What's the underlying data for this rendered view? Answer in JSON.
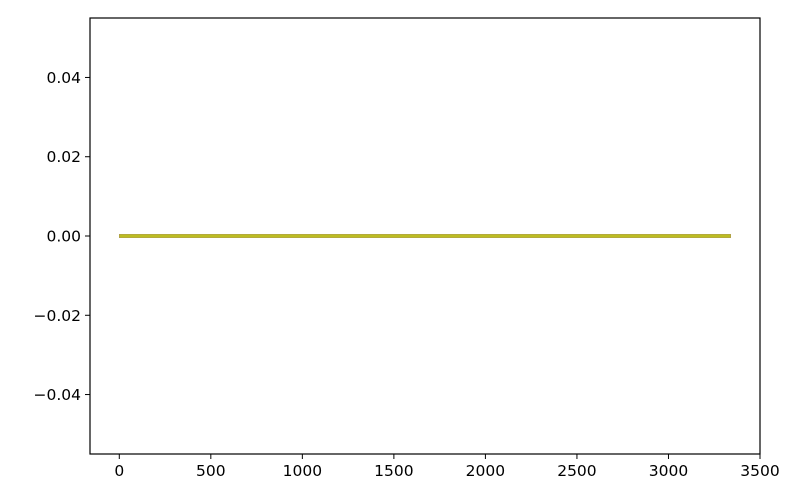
{
  "chart_data": {
    "type": "line",
    "title": "",
    "xlabel": "",
    "ylabel": "",
    "xlim": [
      -160,
      3500
    ],
    "ylim": [
      -0.055,
      0.055
    ],
    "grid": false,
    "legend": "none",
    "x_ticks": [
      0,
      500,
      1000,
      1500,
      2000,
      2500,
      3000,
      3500
    ],
    "x_tick_labels": [
      "0",
      "500",
      "1000",
      "1500",
      "2000",
      "2500",
      "3000",
      "3500"
    ],
    "y_ticks": [
      -0.04,
      -0.02,
      0.0,
      0.02,
      0.04
    ],
    "y_tick_labels": [
      "−0.04",
      "−0.02",
      "0.00",
      "0.02",
      "0.04"
    ],
    "series": [
      {
        "color": "#1f77b4",
        "x": [
          0,
          3340
        ],
        "y": [
          0,
          0
        ]
      },
      {
        "color": "#ff7f0e",
        "x": [
          0,
          3340
        ],
        "y": [
          0,
          0
        ]
      },
      {
        "color": "#2ca02c",
        "x": [
          0,
          3340
        ],
        "y": [
          0,
          0
        ]
      },
      {
        "color": "#d62728",
        "x": [
          0,
          3340
        ],
        "y": [
          0,
          0
        ]
      },
      {
        "color": "#9467bd",
        "x": [
          0,
          3340
        ],
        "y": [
          0,
          0
        ]
      },
      {
        "color": "#8c564b",
        "x": [
          0,
          3340
        ],
        "y": [
          0,
          0
        ]
      },
      {
        "color": "#e377c2",
        "x": [
          0,
          3340
        ],
        "y": [
          0,
          0
        ]
      },
      {
        "color": "#7f7f7f",
        "x": [
          0,
          3340
        ],
        "y": [
          0,
          0
        ]
      },
      {
        "color": "#bcbd22",
        "x": [
          0,
          3340
        ],
        "y": [
          0,
          0
        ]
      }
    ]
  }
}
